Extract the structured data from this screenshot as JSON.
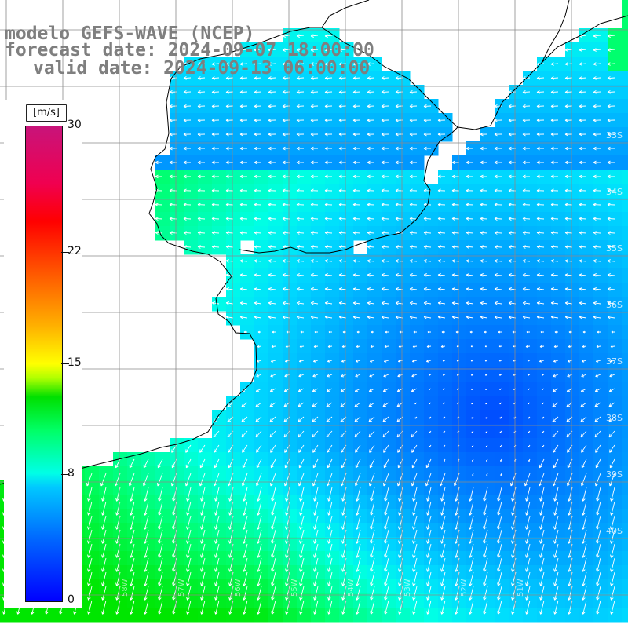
{
  "title": {
    "line1": "modelo GEFS-WAVE (NCEP)",
    "line2": "forecast date: 2024-09-07 18:00:00",
    "line3": "valid date: 2024-09-13 06:00:00"
  },
  "legend": {
    "units": "[m/s]",
    "ticks": [
      {
        "label": "30",
        "value": 30
      },
      {
        "label": "22",
        "value": 22
      },
      {
        "label": "15",
        "value": 15
      },
      {
        "label": "8",
        "value": 8
      },
      {
        "label": "0",
        "value": 0
      }
    ],
    "range": [
      0,
      30
    ],
    "colors": [
      "#0000ff",
      "#0066ff",
      "#00c8ff",
      "#00ffe6",
      "#00ff66",
      "#00e000",
      "#ffff00",
      "#ff7000",
      "#ff0000",
      "#c8147a"
    ]
  },
  "map": {
    "lat_labels": [
      "33S",
      "34S",
      "35S",
      "36S",
      "37S",
      "38S",
      "39S",
      "40S"
    ],
    "lon_labels": [
      "60W",
      "59W",
      "58W",
      "57W",
      "56W",
      "55W",
      "54W",
      "53W",
      "52W",
      "51W"
    ],
    "land_color": "#ffffff",
    "grid_color": "#8a8a8a"
  }
}
